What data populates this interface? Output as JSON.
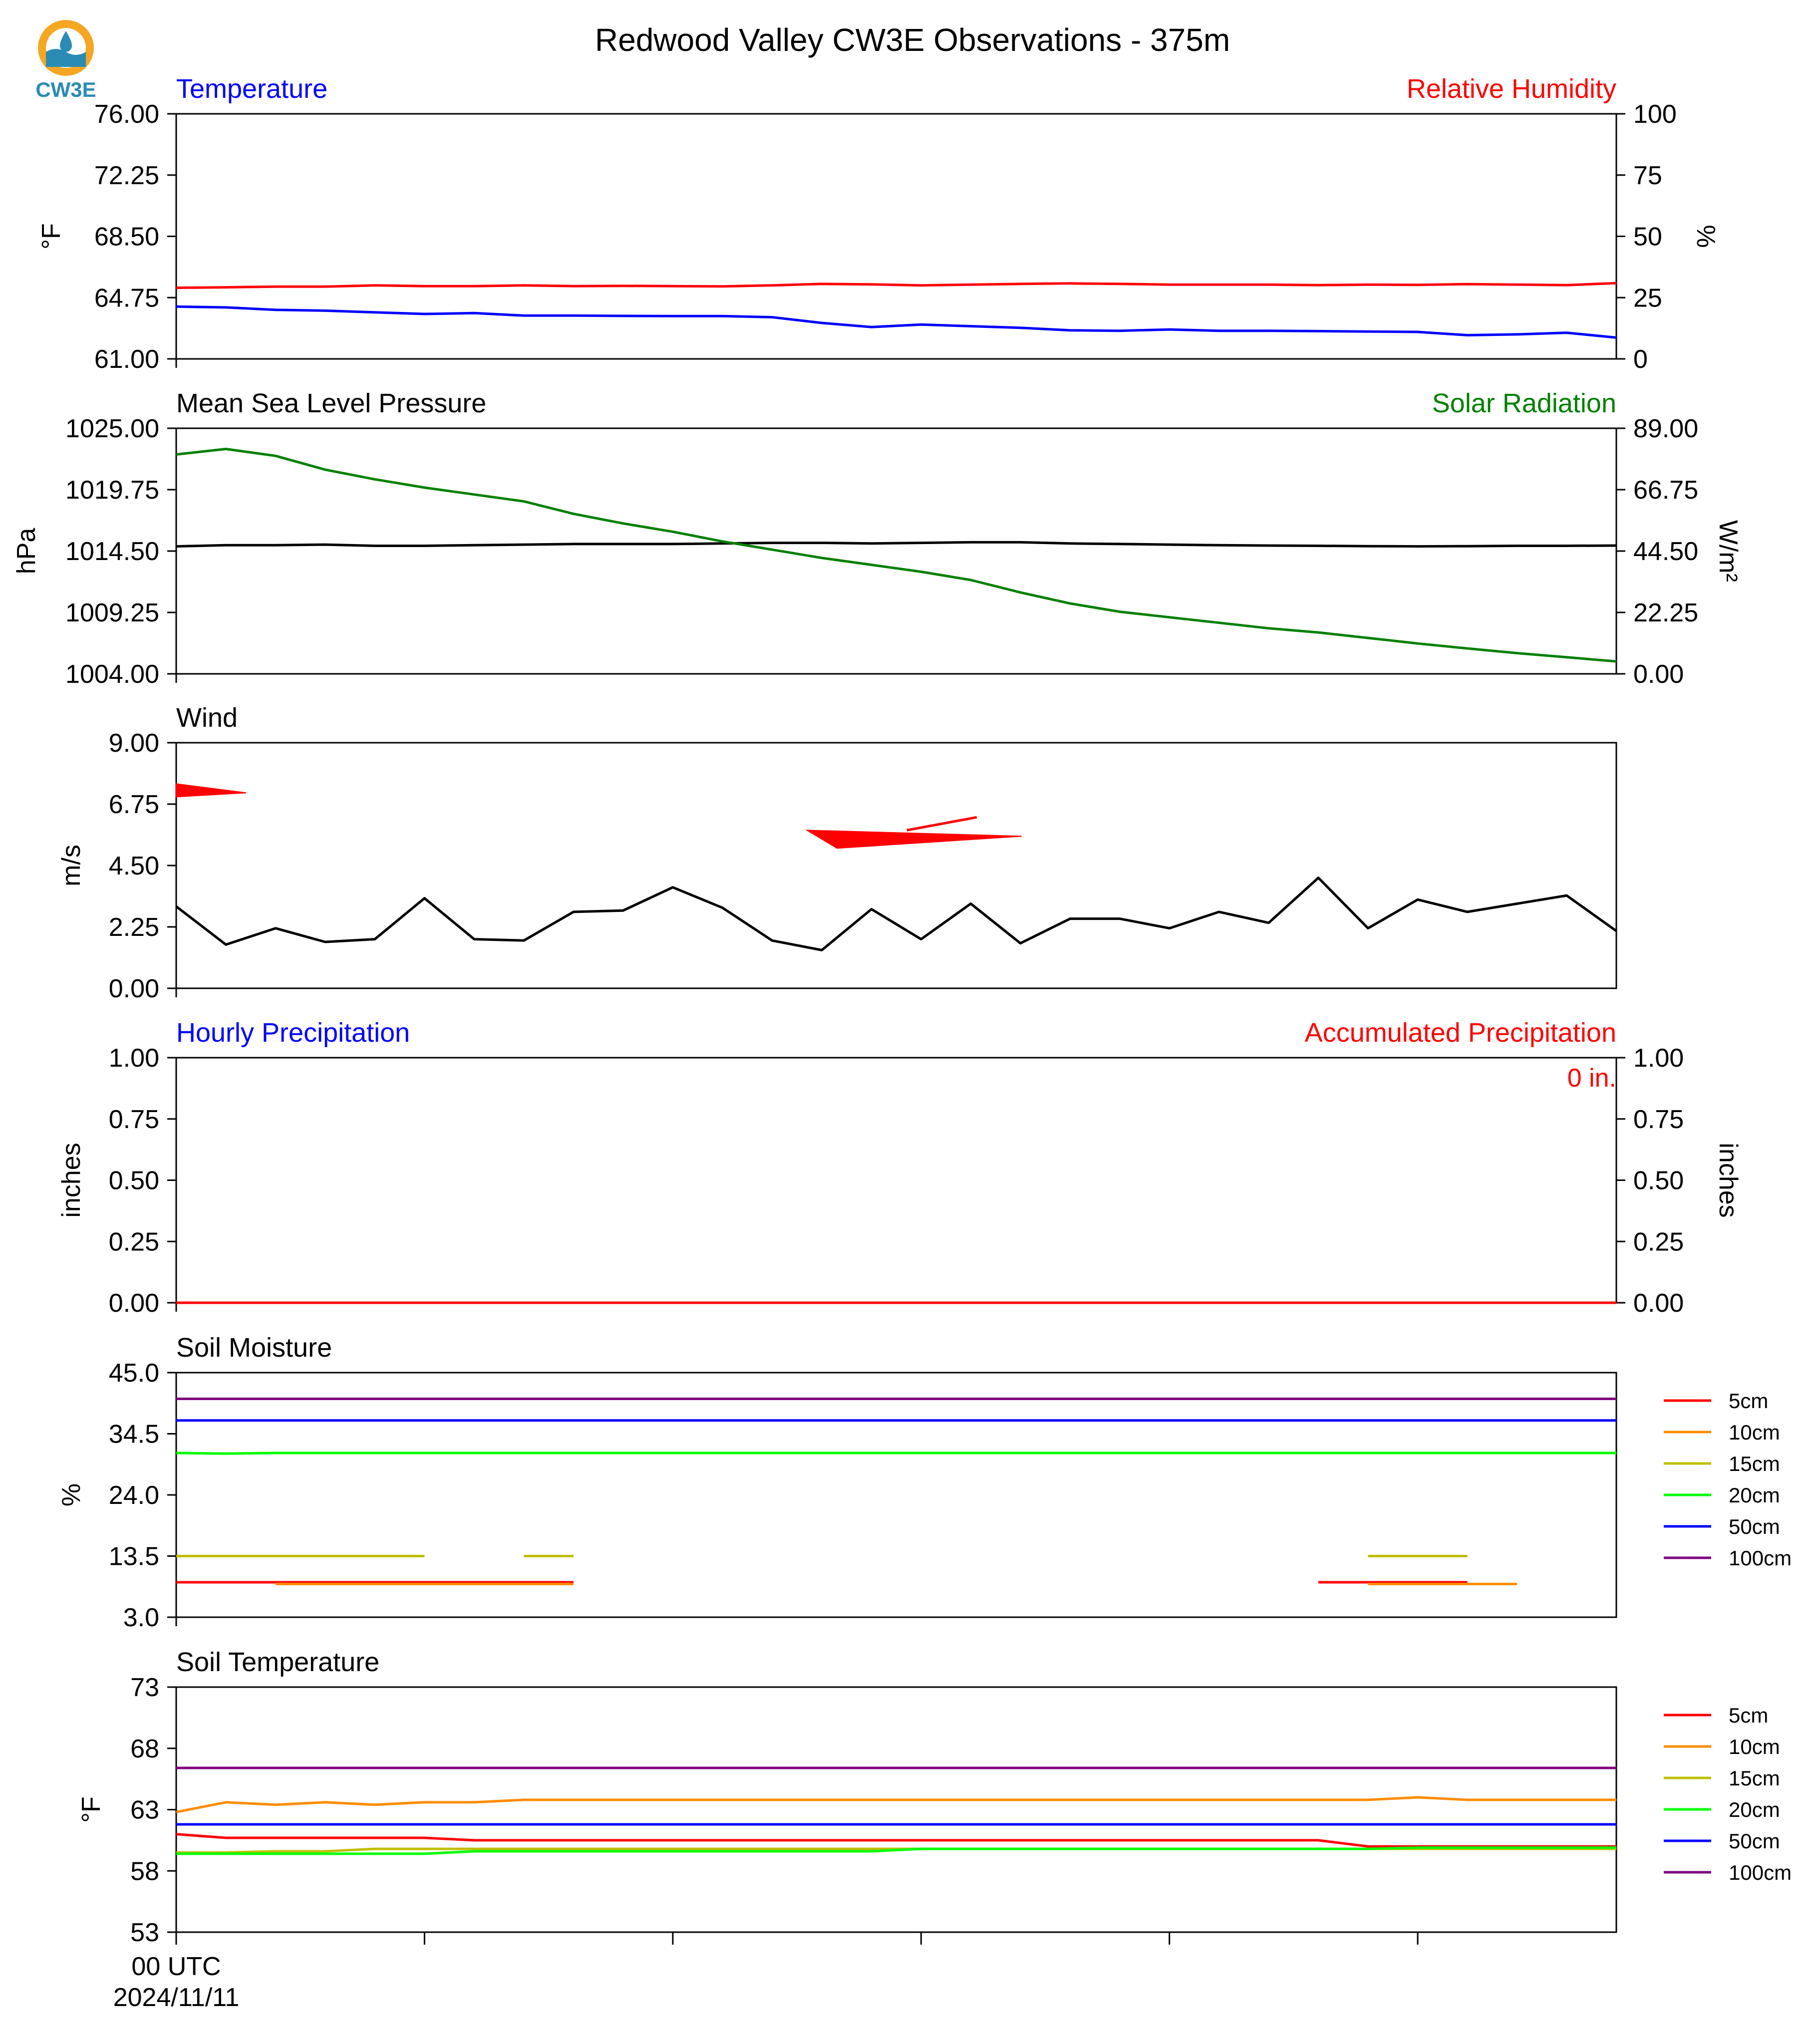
{
  "page": {
    "title": "Redwood Valley CW3E Observations - 375m",
    "logo_text": "CW3E"
  },
  "colors": {
    "blue": "#0000ff",
    "red": "#ff0000",
    "green": "#008000",
    "black": "#000000",
    "orange": "#ff8c00",
    "olive": "#bfbf00",
    "lime": "#00ff00",
    "purple": "#800080",
    "logo_orange": "#f5a623",
    "logo_teal": "#2a8bb5"
  },
  "x_axis": {
    "first_tick_label": "00 UTC",
    "date_label": "2024/11/11"
  },
  "chart_data": [
    {
      "id": "temp-rh",
      "type": "line",
      "title_left": "Temperature",
      "title_right": "Relative Humidity",
      "ylabel_left": "$^\\circ$F",
      "ylabel_right": "%",
      "ylim_left": [
        61.0,
        76.0
      ],
      "ylim_right": [
        0,
        100
      ],
      "yticks_left": [
        "61.00",
        "64.75",
        "68.50",
        "72.25",
        "76.00"
      ],
      "yticks_right": [
        "0",
        "25",
        "50",
        "75",
        "100"
      ],
      "series": [
        {
          "axis": "left",
          "color": "blue",
          "x": [
            0,
            1,
            2,
            3,
            4,
            5,
            6,
            7,
            8,
            9,
            10,
            11,
            12,
            13,
            14,
            15,
            16,
            17,
            18,
            19,
            20,
            21,
            22,
            23,
            24,
            25,
            26,
            27,
            28,
            29
          ],
          "y": [
            64.2,
            64.15,
            64.0,
            63.95,
            63.85,
            63.75,
            63.8,
            63.65,
            63.65,
            63.63,
            63.62,
            63.62,
            63.55,
            63.2,
            62.95,
            63.1,
            63.0,
            62.9,
            62.75,
            62.72,
            62.8,
            62.72,
            62.72,
            62.7,
            62.67,
            62.65,
            62.45,
            62.5,
            62.6,
            62.3
          ]
        },
        {
          "axis": "right",
          "color": "red",
          "x": [
            0,
            1,
            2,
            3,
            4,
            5,
            6,
            7,
            8,
            9,
            10,
            11,
            12,
            13,
            14,
            15,
            16,
            17,
            18,
            19,
            20,
            21,
            22,
            23,
            24,
            25,
            26,
            27,
            28,
            29
          ],
          "y": [
            29.0,
            29.2,
            29.5,
            29.5,
            30.0,
            29.7,
            29.7,
            30.0,
            29.7,
            29.8,
            29.7,
            29.6,
            30.0,
            30.6,
            30.4,
            30.0,
            30.3,
            30.6,
            30.8,
            30.6,
            30.3,
            30.3,
            30.3,
            30.1,
            30.3,
            30.2,
            30.5,
            30.3,
            30.1,
            30.9
          ]
        }
      ]
    },
    {
      "id": "pressure-solar",
      "type": "line",
      "title_left": "Mean Sea Level Pressure",
      "title_right": "Solar Radiation",
      "ylabel_left": "hPa",
      "ylabel_right": "W/m²",
      "ylim_left": [
        1004.0,
        1025.0
      ],
      "ylim_right": [
        0.0,
        89.0
      ],
      "yticks_left": [
        "1004.00",
        "1009.25",
        "1014.50",
        "1019.75",
        "1025.00"
      ],
      "yticks_right": [
        "0.00",
        "22.25",
        "44.50",
        "66.75",
        "89.00"
      ],
      "series": [
        {
          "axis": "left",
          "color": "black",
          "x": [
            0,
            1,
            2,
            3,
            4,
            5,
            6,
            7,
            8,
            9,
            10,
            11,
            12,
            13,
            14,
            15,
            16,
            17,
            18,
            19,
            20,
            21,
            22,
            23,
            24,
            25,
            26,
            27,
            28,
            29
          ],
          "y": [
            1014.9,
            1015.0,
            1015.0,
            1015.05,
            1014.95,
            1014.95,
            1015.0,
            1015.05,
            1015.1,
            1015.1,
            1015.1,
            1015.15,
            1015.2,
            1015.2,
            1015.15,
            1015.2,
            1015.25,
            1015.25,
            1015.15,
            1015.1,
            1015.05,
            1015.0,
            1014.97,
            1014.95,
            1014.92,
            1014.9,
            1014.92,
            1014.95,
            1014.95,
            1014.97
          ]
        },
        {
          "axis": "right",
          "color": "green",
          "x": [
            0,
            1,
            2,
            3,
            4,
            5,
            6,
            7,
            8,
            9,
            10,
            11,
            12,
            13,
            14,
            15,
            16,
            17,
            18,
            19,
            20,
            21,
            22,
            23,
            24,
            25,
            26,
            27,
            28,
            29
          ],
          "y": [
            79.5,
            81.5,
            79.0,
            74.0,
            70.5,
            67.5,
            65.0,
            62.5,
            58.0,
            54.5,
            51.5,
            48.0,
            45.0,
            42.0,
            39.5,
            37.0,
            34.0,
            29.5,
            25.5,
            22.5,
            20.5,
            18.5,
            16.5,
            15.0,
            13.0,
            11.0,
            9.2,
            7.5,
            6.0,
            4.5
          ]
        }
      ]
    },
    {
      "id": "wind",
      "type": "line",
      "title_left": "Wind",
      "ylabel_left": "m/s",
      "ylim_left": [
        0.0,
        9.0
      ],
      "yticks_left": [
        "0.00",
        "2.25",
        "4.50",
        "6.75",
        "9.00"
      ],
      "series": [
        {
          "axis": "left",
          "color": "black",
          "x": [
            0,
            1,
            2,
            3,
            4,
            5,
            6,
            7,
            8,
            9,
            10,
            11,
            12,
            13,
            14,
            15,
            16,
            17,
            18,
            19,
            20,
            21,
            22,
            23,
            24,
            25,
            26,
            27,
            28,
            29
          ],
          "y": [
            3.0,
            1.6,
            2.2,
            1.7,
            1.8,
            3.3,
            1.8,
            1.75,
            2.8,
            2.85,
            3.7,
            2.95,
            1.75,
            1.4,
            2.9,
            1.8,
            3.1,
            1.65,
            2.55,
            2.55,
            2.2,
            2.8,
            2.4,
            4.05,
            2.2,
            3.25,
            2.8,
            3.1,
            3.4,
            2.1
          ]
        }
      ],
      "wind_barbs": [
        {
          "x": 0,
          "speed": 7.2,
          "direction": "westerly"
        },
        {
          "x": 12,
          "speed": 5.5,
          "direction": "westerly"
        }
      ]
    },
    {
      "id": "precip",
      "type": "line",
      "title_left": "Hourly Precipitation",
      "title_right": "Accumulated Precipitation",
      "ylabel_left": "inches",
      "ylabel_right": "inches",
      "ylim_left": [
        0.0,
        1.0
      ],
      "ylim_right": [
        0.0,
        1.0
      ],
      "yticks_left": [
        "0.00",
        "0.25",
        "0.50",
        "0.75",
        "1.00"
      ],
      "yticks_right": [
        "0.00",
        "0.25",
        "0.50",
        "0.75",
        "1.00"
      ],
      "annotation": "0 in.",
      "series": [
        {
          "axis": "left",
          "color": "blue",
          "x": [
            0,
            29
          ],
          "y": [
            0,
            0
          ]
        },
        {
          "axis": "right",
          "color": "red",
          "x": [
            0,
            29
          ],
          "y": [
            0,
            0
          ]
        }
      ]
    },
    {
      "id": "soil-moisture",
      "type": "line",
      "title_left": "Soil Moisture",
      "ylabel_left": "%",
      "ylim_left": [
        3.0,
        45.0
      ],
      "yticks_left": [
        "3.0",
        "13.5",
        "24.0",
        "34.5",
        "45.0"
      ],
      "legend": [
        "5cm",
        "10cm",
        "15cm",
        "20cm",
        "50cm",
        "100cm"
      ],
      "series": [
        {
          "name": "5cm",
          "color": "red",
          "segments": [
            {
              "x": [
                0,
                8
              ],
              "y": [
                9.0,
                9.0
              ]
            },
            {
              "x": [
                23,
                26
              ],
              "y": [
                9.0,
                9.0
              ]
            }
          ]
        },
        {
          "name": "10cm",
          "color": "orange",
          "segments": [
            {
              "x": [
                2,
                8
              ],
              "y": [
                8.7,
                8.7
              ]
            },
            {
              "x": [
                24,
                27
              ],
              "y": [
                8.7,
                8.7
              ]
            }
          ]
        },
        {
          "name": "15cm",
          "color": "olive",
          "segments": [
            {
              "x": [
                0,
                5
              ],
              "y": [
                13.5,
                13.5
              ]
            },
            {
              "x": [
                7,
                8
              ],
              "y": [
                13.5,
                13.5
              ]
            },
            {
              "x": [
                24,
                26
              ],
              "y": [
                13.5,
                13.5
              ]
            }
          ]
        },
        {
          "name": "20cm",
          "color": "lime",
          "segments": [
            {
              "x": [
                0,
                1,
                2,
                29
              ],
              "y": [
                31.2,
                31.1,
                31.2,
                31.2
              ]
            }
          ]
        },
        {
          "name": "50cm",
          "color": "blue",
          "segments": [
            {
              "x": [
                0,
                29
              ],
              "y": [
                36.8,
                36.8
              ]
            }
          ]
        },
        {
          "name": "100cm",
          "color": "purple",
          "segments": [
            {
              "x": [
                0,
                29
              ],
              "y": [
                40.5,
                40.5
              ]
            }
          ]
        }
      ]
    },
    {
      "id": "soil-temperature",
      "type": "line",
      "title_left": "Soil Temperature",
      "ylabel_left": "$^\\circ$F",
      "ylim_left": [
        53,
        73
      ],
      "yticks_left": [
        "53",
        "58",
        "63",
        "68",
        "73"
      ],
      "legend": [
        "5cm",
        "10cm",
        "15cm",
        "20cm",
        "50cm",
        "100cm"
      ],
      "series": [
        {
          "name": "5cm",
          "color": "red",
          "segments": [
            {
              "x": [
                0,
                1,
                2,
                3,
                4,
                5,
                6,
                7,
                8,
                9,
                10,
                11,
                12,
                13,
                14,
                15,
                16,
                17,
                18,
                19,
                20,
                21,
                22,
                23,
                24,
                25,
                26,
                27,
                28,
                29
              ],
              "y": [
                61.0,
                60.7,
                60.7,
                60.7,
                60.7,
                60.7,
                60.5,
                60.5,
                60.5,
                60.5,
                60.5,
                60.5,
                60.5,
                60.5,
                60.5,
                60.5,
                60.5,
                60.5,
                60.5,
                60.5,
                60.5,
                60.5,
                60.5,
                60.5,
                60.0,
                60.0,
                60.0,
                60.0,
                60.0,
                60.0
              ]
            }
          ]
        },
        {
          "name": "10cm",
          "color": "orange",
          "segments": [
            {
              "x": [
                0,
                1,
                2,
                3,
                4,
                5,
                6,
                7,
                8,
                9,
                10,
                11,
                12,
                13,
                14,
                15,
                16,
                17,
                18,
                19,
                20,
                21,
                22,
                23,
                24,
                25,
                26,
                27,
                28,
                29
              ],
              "y": [
                62.8,
                63.6,
                63.4,
                63.6,
                63.4,
                63.6,
                63.6,
                63.8,
                63.8,
                63.8,
                63.8,
                63.8,
                63.8,
                63.8,
                63.8,
                63.8,
                63.8,
                63.8,
                63.8,
                63.8,
                63.8,
                63.8,
                63.8,
                63.8,
                63.8,
                64.0,
                63.8,
                63.8,
                63.8,
                63.8
              ]
            }
          ]
        },
        {
          "name": "15cm",
          "color": "olive",
          "segments": [
            {
              "x": [
                0,
                1,
                2,
                3,
                4,
                5,
                6,
                7,
                8,
                9,
                10,
                11,
                12,
                13,
                14,
                15,
                16,
                17,
                18,
                19,
                20,
                21,
                22,
                23,
                24,
                25,
                26,
                27,
                28,
                29
              ],
              "y": [
                59.5,
                59.5,
                59.6,
                59.6,
                59.8,
                59.8,
                59.8,
                59.8,
                59.8,
                59.8,
                59.8,
                59.8,
                59.8,
                59.8,
                59.8,
                59.8,
                59.8,
                59.8,
                59.8,
                59.8,
                59.8,
                59.8,
                59.8,
                59.8,
                59.8,
                59.8,
                59.8,
                59.8,
                59.8,
                59.8
              ]
            }
          ]
        },
        {
          "name": "20cm",
          "color": "lime",
          "segments": [
            {
              "x": [
                0,
                1,
                2,
                3,
                4,
                5,
                6,
                7,
                8,
                9,
                10,
                11,
                12,
                13,
                14,
                15,
                16,
                17,
                18,
                19,
                20,
                21,
                22,
                23,
                24,
                25,
                26,
                27,
                28,
                29
              ],
              "y": [
                59.4,
                59.4,
                59.4,
                59.4,
                59.4,
                59.4,
                59.6,
                59.6,
                59.6,
                59.6,
                59.6,
                59.6,
                59.6,
                59.6,
                59.6,
                59.8,
                59.8,
                59.8,
                59.8,
                59.8,
                59.8,
                59.8,
                59.8,
                59.8,
                59.8,
                59.9,
                59.9,
                59.9,
                59.9,
                59.9
              ]
            }
          ]
        },
        {
          "name": "50cm",
          "color": "blue",
          "segments": [
            {
              "x": [
                0,
                29
              ],
              "y": [
                61.8,
                61.8
              ]
            }
          ]
        },
        {
          "name": "100cm",
          "color": "purple",
          "segments": [
            {
              "x": [
                0,
                29
              ],
              "y": [
                66.4,
                66.4
              ]
            }
          ]
        }
      ]
    }
  ]
}
